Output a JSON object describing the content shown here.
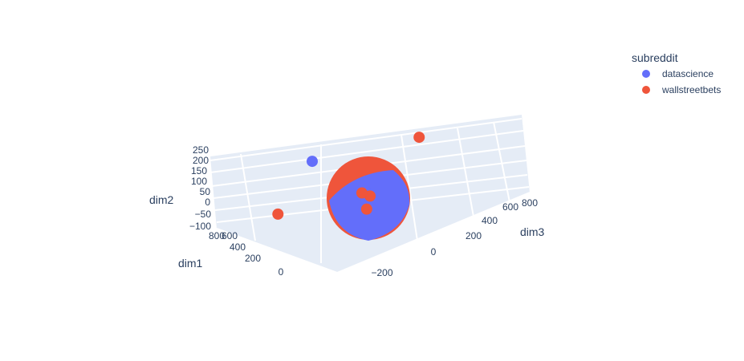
{
  "chart_data": {
    "type": "scatter",
    "mode": "3d",
    "legend": {
      "title": "subreddit",
      "placement": "top-right",
      "items": [
        {
          "name": "datascience",
          "color": "#636efa"
        },
        {
          "name": "wallstreetbets",
          "color": "#ef553b"
        }
      ]
    },
    "axes": {
      "x": {
        "label": "dim1",
        "ticks": [
          "0",
          "200",
          "400",
          "600",
          "800"
        ],
        "range": [
          -100,
          900
        ]
      },
      "y": {
        "label": "dim2",
        "ticks": [
          "−100",
          "−50",
          "0",
          "50",
          "100",
          "150",
          "200",
          "250"
        ],
        "range": [
          -120,
          270
        ]
      },
      "z": {
        "label": "dim3",
        "ticks": [
          "−200",
          "0",
          "200",
          "400",
          "600",
          "800"
        ],
        "range": [
          -300,
          850
        ]
      }
    },
    "series": [
      {
        "name": "datascience",
        "color": "#636efa",
        "points": [
          {
            "dim1": 220,
            "dim2": 240,
            "dim3": -250
          },
          {
            "dim1": 30,
            "dim2": 10,
            "dim3": 20
          },
          {
            "dim1": 0,
            "dim2": 0,
            "dim3": 0
          },
          {
            "dim1": 20,
            "dim2": -20,
            "dim3": 40
          },
          {
            "dim1": -20,
            "dim2": 30,
            "dim3": -30
          },
          {
            "dim1": 40,
            "dim2": 50,
            "dim3": 10
          }
        ]
      },
      {
        "name": "wallstreetbets",
        "color": "#ef553b",
        "points": [
          {
            "dim1": 650,
            "dim2": 60,
            "dim3": 850
          },
          {
            "dim1": 820,
            "dim2": -20,
            "dim3": -60
          },
          {
            "dim1": -30,
            "dim2": 40,
            "dim3": -10
          },
          {
            "dim1": 10,
            "dim2": 60,
            "dim3": -40
          },
          {
            "dim1": -10,
            "dim2": -10,
            "dim3": -20
          }
        ]
      }
    ]
  }
}
